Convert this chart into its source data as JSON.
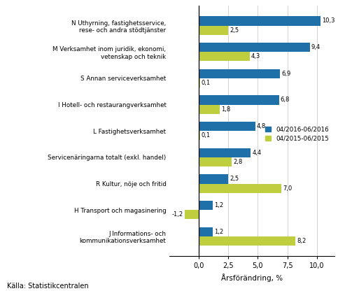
{
  "categories": [
    "J Informations- och\nkommunikationsverksamhet",
    "H Transport och magasinering",
    "R Kultur, nöje och fritid",
    "Servicenäringarna totalt (exkl. handel)",
    "L Fastighetsverksamhet",
    "I Hotell- och restaurangverksamhet",
    "S Annan serviceverksamhet",
    "M Verksamhet inom juridik, ekonomi,\nvetenskap och teknik",
    "N Uthyrning, fastighetsservice,\nrese- och andra stödtjänster"
  ],
  "values_2016": [
    1.2,
    1.2,
    2.5,
    4.4,
    4.8,
    6.8,
    6.9,
    9.4,
    10.3
  ],
  "values_2015": [
    8.2,
    -1.2,
    7.0,
    2.8,
    0.1,
    1.8,
    0.1,
    4.3,
    2.5
  ],
  "color_2016": "#1F6FA8",
  "color_2015": "#BFCE3E",
  "legend_2016": "04/2016-06/2016",
  "legend_2015": "04/2015-06/2015",
  "xlabel": "Årsförändring, %",
  "source": "Källa: Statistikcentralen",
  "xlim": [
    -2.5,
    11.5
  ],
  "xticks": [
    0.0,
    2.5,
    5.0,
    7.5,
    10.0
  ],
  "xticklabels": [
    "0,0",
    "2,5",
    "5,0",
    "7,5",
    "10,0"
  ]
}
